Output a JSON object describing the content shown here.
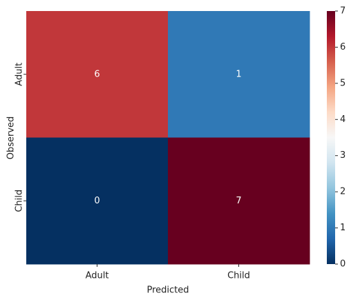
{
  "chart_data": {
    "type": "heatmap",
    "x_label": "Predicted",
    "y_label": "Observed",
    "x_categories": [
      "Adult",
      "Child"
    ],
    "y_categories": [
      "Adult",
      "Child"
    ],
    "values": [
      [
        6,
        1
      ],
      [
        0,
        7
      ]
    ],
    "colormap": [
      "#053061",
      "#2166ac",
      "#4393c3",
      "#92c5de",
      "#d1e5f0",
      "#f7f7f7",
      "#fddbc7",
      "#f4a582",
      "#d6604d",
      "#b2182b",
      "#67001f"
    ],
    "clim": [
      0,
      7
    ],
    "cticks": [
      0,
      1,
      2,
      3,
      4,
      5,
      6,
      7
    ]
  }
}
